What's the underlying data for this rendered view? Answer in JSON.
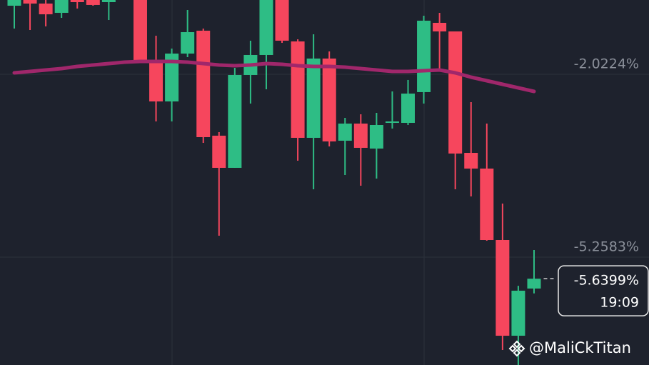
{
  "chart_data": {
    "type": "candlestick",
    "open": [
      -0.809,
      -0.708,
      -0.771,
      -0.935,
      -0.708,
      -0.708,
      -0.746,
      null,
      -0.708,
      -1.782,
      -2.503,
      -1.656,
      -1.251,
      -3.109,
      -3.678,
      -2.035,
      -1.681,
      -0.708,
      -1.441,
      -3.147,
      -1.744,
      -3.198,
      -2.895,
      -3.337,
      -2.882,
      -2.882,
      -2.338,
      -1.112,
      -1.264,
      -3.413,
      -3.691,
      -4.955,
      -6.649,
      -5.814
    ],
    "high": [
      -0.708,
      -0.708,
      -0.708,
      -0.708,
      -0.708,
      -0.708,
      -0.708,
      null,
      -0.708,
      -1.34,
      -1.567,
      -0.885,
      -1.213,
      -3.046,
      -1.909,
      -1.428,
      -0.708,
      -0.708,
      -1.403,
      -1.315,
      -1.618,
      -2.793,
      -2.73,
      -2.705,
      -2.326,
      -2.123,
      -0.986,
      -0.935,
      -1.264,
      -2.515,
      -2.895,
      -4.31,
      -5.766,
      -5.132
    ],
    "low": [
      -1.213,
      -1.239,
      -1.175,
      -1.024,
      -0.859,
      -0.809,
      -1.062,
      null,
      -1.782,
      -2.857,
      -2.857,
      -1.719,
      -3.236,
      -4.879,
      -3.678,
      -2.541,
      -2.288,
      -1.466,
      -3.552,
      -4.057,
      -3.299,
      -3.805,
      -3.994,
      -3.868,
      -2.983,
      -2.92,
      -2.541,
      -1.972,
      -4.057,
      -4.184,
      -4.967,
      -6.902,
      -7.167,
      -5.9
    ],
    "close": [
      -0.708,
      -0.771,
      -0.961,
      -0.708,
      -0.746,
      -0.796,
      -0.708,
      null,
      -1.782,
      -2.503,
      -1.656,
      -1.277,
      -3.135,
      -3.678,
      -2.035,
      -1.681,
      -0.708,
      -1.428,
      -3.147,
      -1.744,
      -3.211,
      -2.895,
      -3.324,
      -2.92,
      -2.857,
      -2.364,
      -1.074,
      -1.264,
      -3.425,
      -3.691,
      -4.955,
      -6.649,
      -5.852,
      -5.64
    ],
    "up_color": "#2ebd85",
    "down_color": "#f6465d",
    "ma": {
      "color": "#a0276b",
      "values": [
        -1.997,
        -1.972,
        -1.947,
        -1.921,
        -1.884,
        -1.858,
        -1.833,
        -1.808,
        -1.795,
        -1.795,
        -1.795,
        -1.808,
        -1.833,
        -1.858,
        -1.871,
        -1.858,
        -1.833,
        -1.846,
        -1.871,
        -1.884,
        -1.884,
        -1.896,
        -1.921,
        -1.947,
        -1.972,
        -1.972,
        -1.959,
        -1.947,
        -1.997,
        -2.073,
        -2.136,
        -2.199,
        -2.263,
        -2.326
      ]
    },
    "ylim": [
      -7.167,
      -0.708
    ],
    "yticks": [
      {
        "value": -5.2583,
        "label": "-5.2583%"
      },
      {
        "value": -2.0224,
        "label": "-2.0224%"
      }
    ],
    "grid": true,
    "last_price": {
      "value": -5.6399,
      "label": "-5.6399%"
    },
    "last_time": "19:09",
    "watermark": "@MaliCkTitan"
  }
}
